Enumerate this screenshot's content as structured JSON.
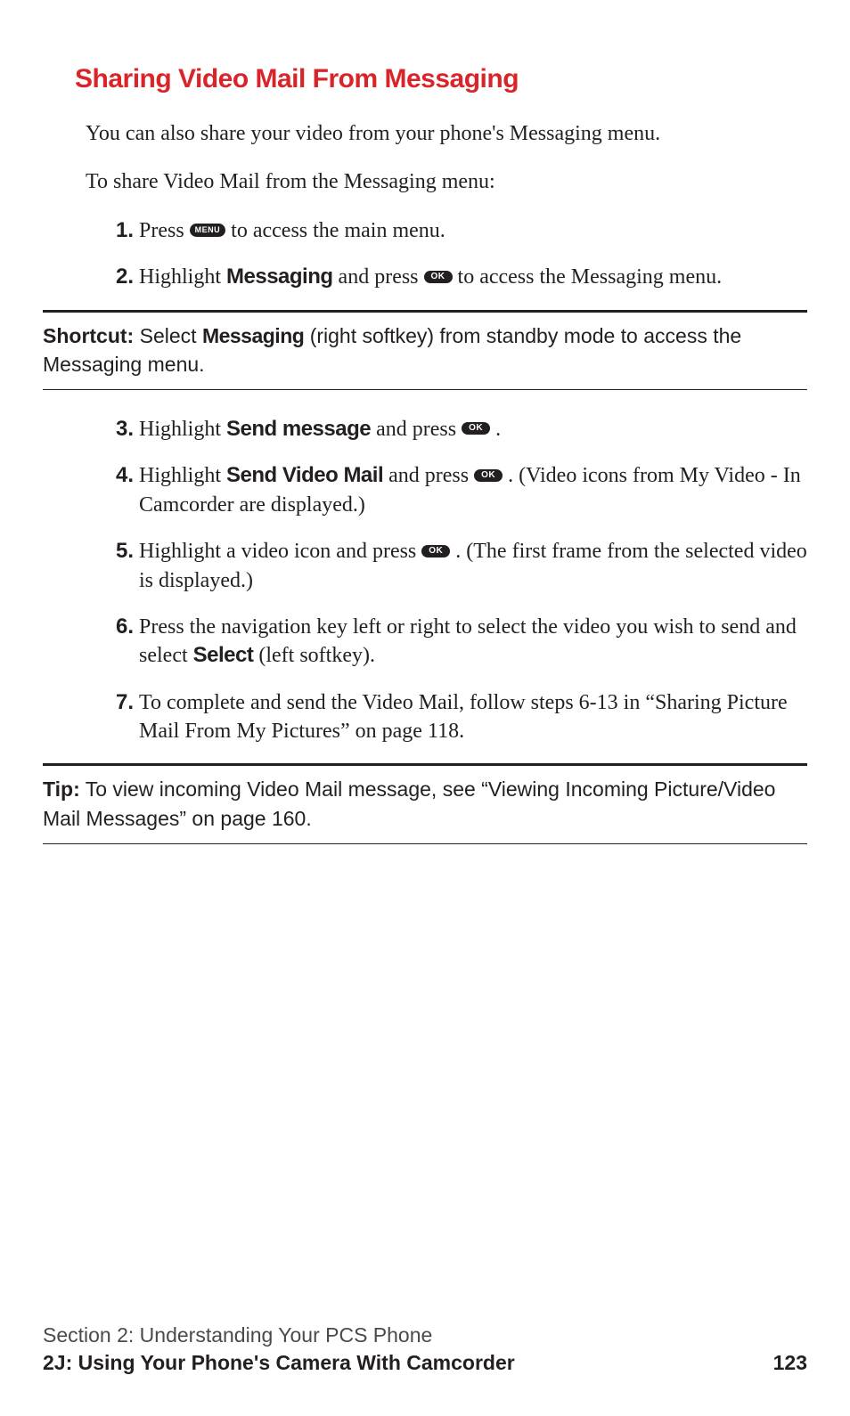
{
  "heading": "Sharing Video Mail From Messaging",
  "intro1": "You can also share your video from your phone's Messaging menu.",
  "intro2": "To share Video Mail from the Messaging menu:",
  "keys": {
    "menu": "MENU",
    "ok": "OK"
  },
  "steps": {
    "s1": {
      "num": "1.",
      "a": "Press ",
      "b": " to access the main menu."
    },
    "s2": {
      "num": "2.",
      "a": "Highlight ",
      "bold": "Messaging",
      "b": " and press ",
      "c": " to access the Messaging menu."
    },
    "s3": {
      "num": "3.",
      "a": "Highlight ",
      "bold": "Send message",
      "b": " and press ",
      "c": " ."
    },
    "s4": {
      "num": "4.",
      "a": "Highlight ",
      "bold": "Send Video Mail",
      "b": " and press ",
      "c": " . (Video icons from My Video - In Camcorder are displayed.)"
    },
    "s5": {
      "num": "5.",
      "a": "Highlight a video icon and press ",
      "c": " . (The first frame from the selected video is displayed.)"
    },
    "s6": {
      "num": "6.",
      "a": "Press the navigation key left or right to select the video you wish to send and select ",
      "bold": "Select",
      "b": " (left softkey)."
    },
    "s7": {
      "num": "7.",
      "a": "To complete and send the Video Mail, follow steps 6-13 in “Sharing Picture Mail From My Pictures” on page 118."
    }
  },
  "shortcut": {
    "label": "Shortcut:",
    "a": " Select ",
    "bold": "Messaging",
    "b": " (right softkey) from standby mode to access the Messaging menu."
  },
  "tip": {
    "label": "Tip:",
    "text": " To view incoming Video Mail message, see “Viewing Incoming Picture/Video Mail Messages” on page 160."
  },
  "footer": {
    "line1": "Section 2: Understanding Your PCS Phone",
    "line2": "2J: Using Your Phone's Camera With Camcorder",
    "page": "123"
  },
  "colors": {
    "heading": "#d9252a",
    "text": "#231f20",
    "background": "#ffffff"
  }
}
